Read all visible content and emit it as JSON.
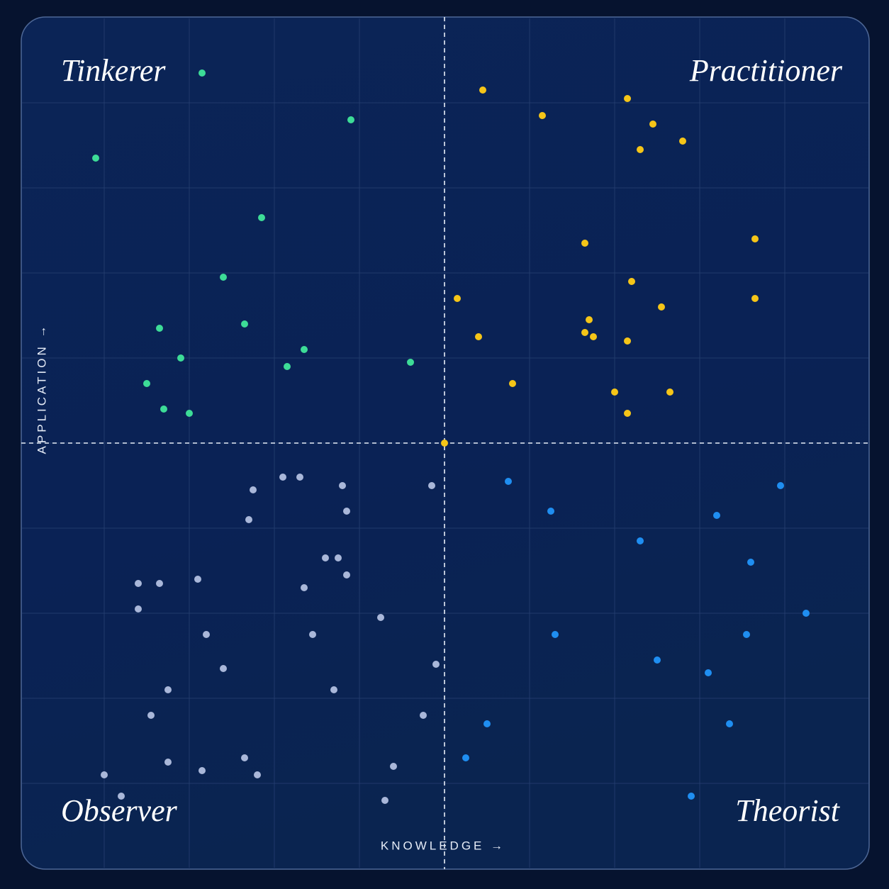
{
  "chart_data": {
    "type": "scatter",
    "x_label": "KNOWLEDGE →",
    "y_label": "APPLICATION →",
    "xlim": [
      -100,
      100
    ],
    "ylim": [
      -100,
      100
    ],
    "xticks": [
      -80,
      -60,
      -40,
      -20,
      0,
      20,
      40,
      60,
      80
    ],
    "yticks": [
      -80,
      -60,
      -40,
      -20,
      0,
      20,
      40,
      60,
      80
    ],
    "grid": true,
    "series": [
      {
        "name": "Tinkerer",
        "color": "#3ddc97",
        "x": [
          -57,
          -22,
          -82,
          -43,
          -52,
          -67,
          -47,
          -33,
          -62,
          -37,
          -8,
          -70,
          -66,
          -60
        ],
        "values": [
          87,
          76,
          67,
          53,
          39,
          27,
          28,
          22,
          20,
          18,
          19,
          14,
          8,
          7
        ]
      },
      {
        "name": "Practitioner",
        "color": "#f5c518",
        "x": [
          9,
          23,
          43,
          49,
          46,
          56,
          33,
          73,
          44,
          3,
          51,
          73,
          34,
          33,
          35,
          8,
          43,
          16,
          40,
          53,
          43,
          0
        ],
        "values": [
          83,
          77,
          81,
          75,
          69,
          71,
          47,
          48,
          38,
          34,
          32,
          34,
          29,
          26,
          25,
          25,
          24,
          14,
          12,
          12,
          7,
          0
        ]
      },
      {
        "name": "Theorist",
        "color": "#1f8ef1",
        "x": [
          15,
          79,
          25,
          64,
          46,
          72,
          85,
          26,
          71,
          50,
          62,
          10,
          67,
          5,
          58
        ],
        "values": [
          -9,
          -10,
          -16,
          -17,
          -23,
          -28,
          -40,
          -45,
          -45,
          -51,
          -54,
          -66,
          -66,
          -74,
          -83
        ]
      },
      {
        "name": "Observer",
        "color": "#a9b7d9",
        "x": [
          -38,
          -34,
          -45,
          -24,
          -3,
          -46,
          -23,
          -28,
          -25,
          -23,
          -33,
          -72,
          -67,
          -58,
          -72,
          -15,
          -56,
          -31,
          -52,
          -2,
          -65,
          -26,
          -69,
          -5,
          -65,
          -57,
          -47,
          -44,
          -12,
          -80,
          -76,
          -14
        ],
        "values": [
          -8,
          -8,
          -11,
          -10,
          -10,
          -18,
          -16,
          -27,
          -27,
          -31,
          -34,
          -33,
          -33,
          -32,
          -39,
          -41,
          -45,
          -45,
          -53,
          -52,
          -58,
          -58,
          -64,
          -64,
          -75,
          -77,
          -74,
          -78,
          -76,
          -78,
          -83,
          -84
        ]
      }
    ]
  }
}
